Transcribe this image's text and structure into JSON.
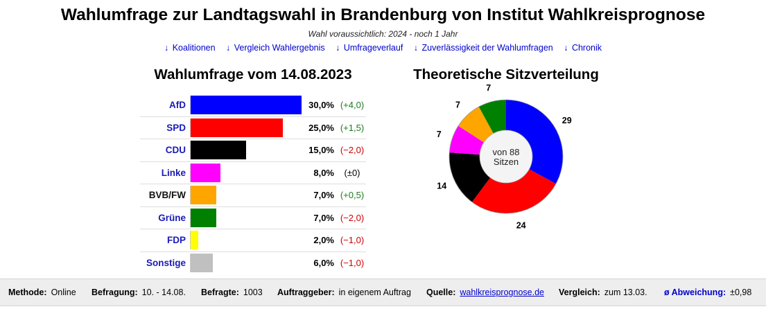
{
  "header": {
    "title": "Wahlumfrage zur Landtagswahl in Brandenburg von Institut Wahlkreisprognose",
    "subtitle": "Wahl voraussichtlich: 2024 - noch 1 Jahr"
  },
  "nav_links": [
    {
      "arrow": "↓",
      "label": "Koalitionen"
    },
    {
      "arrow": "↓",
      "label": "Vergleich Wahlergebnis"
    },
    {
      "arrow": "↓",
      "label": "Umfrageverlauf"
    },
    {
      "arrow": "↓",
      "label": "Zuverlässigkeit der Wahlumfragen"
    },
    {
      "arrow": "↓",
      "label": "Chronik"
    }
  ],
  "poll": {
    "title": "Wahlumfrage vom 14.08.2023",
    "max_percent": 30,
    "parties": [
      {
        "name": "AfD",
        "percent": 30.0,
        "percent_label": "30,0%",
        "diff": "(+4,0)",
        "trend": "pos",
        "color": "#0000ff",
        "link": true
      },
      {
        "name": "SPD",
        "percent": 25.0,
        "percent_label": "25,0%",
        "diff": "(+1,5)",
        "trend": "pos",
        "color": "#ff0000",
        "link": true
      },
      {
        "name": "CDU",
        "percent": 15.0,
        "percent_label": "15,0%",
        "diff": "(−2,0)",
        "trend": "neg",
        "color": "#000000",
        "link": true
      },
      {
        "name": "Linke",
        "percent": 8.0,
        "percent_label": "8,0%",
        "diff": "(±0)",
        "trend": "zero",
        "color": "#ff00ff",
        "link": true
      },
      {
        "name": "BVB/FW",
        "percent": 7.0,
        "percent_label": "7,0%",
        "diff": "(+0,5)",
        "trend": "pos",
        "color": "#ffa500",
        "link": false
      },
      {
        "name": "Grüne",
        "percent": 7.0,
        "percent_label": "7,0%",
        "diff": "(−2,0)",
        "trend": "neg",
        "color": "#008000",
        "link": true
      },
      {
        "name": "FDP",
        "percent": 2.0,
        "percent_label": "2,0%",
        "diff": "(−1,0)",
        "trend": "neg",
        "color": "#ffff00",
        "link": true
      },
      {
        "name": "Sonstige",
        "percent": 6.0,
        "percent_label": "6,0%",
        "diff": "(−1,0)",
        "trend": "neg",
        "color": "#c0c0c0",
        "link": true
      }
    ]
  },
  "seats": {
    "title": "Theoretische Sitzverteilung",
    "center_line1": "von 88",
    "center_line2": "Sitzen",
    "total": 88
  },
  "chart_data": {
    "type": "pie",
    "title": "Theoretische Sitzverteilung",
    "labels": [
      "AfD",
      "SPD",
      "CDU",
      "Linke",
      "BVB/FW",
      "Grüne"
    ],
    "values": [
      29,
      24,
      14,
      7,
      7,
      7
    ],
    "colors": [
      "#0000ff",
      "#ff0000",
      "#000000",
      "#ff00ff",
      "#ffa500",
      "#008000"
    ]
  },
  "footer": {
    "methode_label": "Methode:",
    "methode_value": "Online",
    "befragung_label": "Befragung:",
    "befragung_value": "10. - 14.08.",
    "befragte_label": "Befragte:",
    "befragte_value": "1003",
    "auftraggeber_label": "Auftraggeber:",
    "auftraggeber_value": "in eigenem Auftrag",
    "quelle_label": "Quelle:",
    "quelle_value": "wahlkreisprognose.de",
    "vergleich_label": "Vergleich:",
    "vergleich_value": "zum 13.03.",
    "abweichung_label": "ø Abweichung:",
    "abweichung_value": "±0,98"
  }
}
